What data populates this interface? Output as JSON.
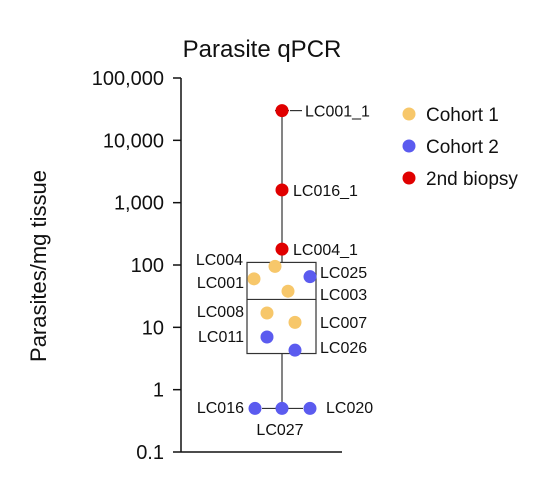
{
  "chart_data": {
    "type": "scatter",
    "title": "Parasite qPCR",
    "xlabel": "",
    "ylabel": "Parasites/mg tissue",
    "y_scale": "log",
    "ylim": [
      0.1,
      100000
    ],
    "y_ticks": [
      {
        "value": 0.1,
        "label": "0.1"
      },
      {
        "value": 1,
        "label": "1"
      },
      {
        "value": 10,
        "label": "10"
      },
      {
        "value": 100,
        "label": "100"
      },
      {
        "value": 1000,
        "label": "1,000"
      },
      {
        "value": 10000,
        "label": "10,000"
      },
      {
        "value": 100000,
        "label": "100,000"
      }
    ],
    "grid": false,
    "legend_position": "right",
    "series": [
      {
        "name": "Cohort 1",
        "color": "#f7c76a"
      },
      {
        "name": "Cohort 2",
        "color": "#5b5bef"
      },
      {
        "name": "2nd biopsy",
        "color": "#e00000"
      }
    ],
    "box": {
      "whisker_low": 0.5,
      "q1": 3.8,
      "median": 28,
      "q3": 110,
      "whisker_high": 30000
    },
    "points": [
      {
        "label": "LC001_1",
        "series": "2nd biopsy",
        "y": 30000
      },
      {
        "label": "LC016_1",
        "series": "2nd biopsy",
        "y": 1600
      },
      {
        "label": "LC004_1",
        "series": "2nd biopsy",
        "y": 180
      },
      {
        "label": "LC004",
        "series": "Cohort 1",
        "y": 95
      },
      {
        "label": "LC001",
        "series": "Cohort 1",
        "y": 60
      },
      {
        "label": "LC025",
        "series": "Cohort 2",
        "y": 65
      },
      {
        "label": "LC003",
        "series": "Cohort 1",
        "y": 38
      },
      {
        "label": "LC008",
        "series": "Cohort 1",
        "y": 17
      },
      {
        "label": "LC007",
        "series": "Cohort 1",
        "y": 12
      },
      {
        "label": "LC011",
        "series": "Cohort 2",
        "y": 7
      },
      {
        "label": "LC026",
        "series": "Cohort 2",
        "y": 4.3
      },
      {
        "label": "LC016",
        "series": "Cohort 2",
        "y": 0.5
      },
      {
        "label": "LC027",
        "series": "Cohort 2",
        "y": 0.5
      },
      {
        "label": "LC020",
        "series": "Cohort 2",
        "y": 0.5
      }
    ]
  }
}
